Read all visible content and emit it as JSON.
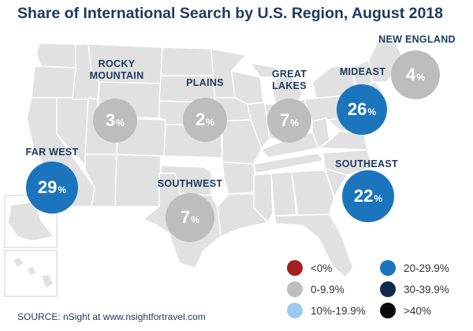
{
  "title": "Share of International Search by U.S. Region, August 2018",
  "regions": [
    {
      "name_lines": [
        "ROCKY",
        "MOUNTAIN"
      ],
      "value": 3,
      "unit": "%",
      "color": "#bdbdbd"
    },
    {
      "name_lines": [
        "PLAINS"
      ],
      "value": 2,
      "unit": "%",
      "color": "#bdbdbd"
    },
    {
      "name_lines": [
        "GREAT",
        "LAKES"
      ],
      "value": 7,
      "unit": "%",
      "color": "#bdbdbd"
    },
    {
      "name_lines": [
        "MIDEAST"
      ],
      "value": 26,
      "unit": "%",
      "color": "#1b75bc"
    },
    {
      "name_lines": [
        "NEW ENGLAND"
      ],
      "value": 4,
      "unit": "%",
      "color": "#bdbdbd"
    },
    {
      "name_lines": [
        "FAR WEST"
      ],
      "value": 29,
      "unit": "%",
      "color": "#1b75bc"
    },
    {
      "name_lines": [
        "SOUTHWEST"
      ],
      "value": 7,
      "unit": "%",
      "color": "#bdbdbd"
    },
    {
      "name_lines": [
        "SOUTHEAST"
      ],
      "value": 22,
      "unit": "%",
      "color": "#1b75bc"
    }
  ],
  "legend": [
    {
      "label": "<0%",
      "color": "#a31f22"
    },
    {
      "label": "0-9.9%",
      "color": "#bdbdbd"
    },
    {
      "label": "10%-19.9%",
      "color": "#9cc9ec"
    },
    {
      "label": "20-29.9%",
      "color": "#1b75bc"
    },
    {
      "label": "30-39.9%",
      "color": "#0e2a4f"
    },
    {
      "label": ">40%",
      "color": "#0a0a0a"
    }
  ],
  "source": "SOURCE: nSight at www.nsightfortravel.com",
  "colors": {
    "land": "#e1e1e1",
    "border": "#ffffff",
    "title": "#1e3a5c"
  }
}
